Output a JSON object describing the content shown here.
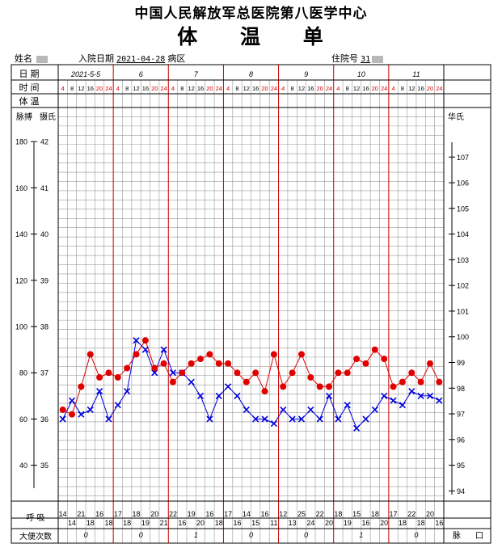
{
  "header": {
    "hospital": "中国人民解放军总医院第八医学中心",
    "title": "体 温 单"
  },
  "patient": {
    "name_label": "姓名",
    "admit_label": "入院日期",
    "admit_date": "2021-04-28",
    "ward_label": "病区",
    "inpatient_label": "住院号",
    "inpatient_no": "31"
  },
  "labels": {
    "date": "日 期",
    "time": "时 间",
    "temp": "体 温",
    "pulse": "脉搏",
    "celsius": "摄氏",
    "fahrenheit": "华氏",
    "resp": "呼 吸",
    "stool": "大便次数",
    "pulse_foot": "脉",
    "mouth_foot": "口"
  },
  "colors": {
    "temp": "#e00000",
    "pulse": "#0000dd",
    "line": "#000000",
    "day_line": "#cc0000",
    "grid": "#999999"
  },
  "chart_data": {
    "type": "line",
    "days": [
      "2021-5-5",
      "6",
      "7",
      "8",
      "9",
      "10",
      "11"
    ],
    "hours": [
      "4",
      "8",
      "12",
      "16",
      "20",
      "24"
    ],
    "pulse_scale": [
      180,
      160,
      140,
      120,
      100,
      80,
      60,
      40
    ],
    "celsius_scale": [
      42,
      41,
      40,
      39,
      38,
      37,
      36,
      35
    ],
    "fahrenheit_scale": [
      107,
      106,
      105,
      104,
      103,
      102,
      101,
      100,
      99,
      98,
      97,
      96,
      95,
      94
    ],
    "temperature_c": [
      [
        36.2,
        36.1,
        36.7,
        37.4,
        36.9,
        37.0
      ],
      [
        36.9,
        37.1,
        37.4,
        37.7,
        37.1,
        37.2
      ],
      [
        36.8,
        37.0,
        37.2,
        37.3,
        37.4,
        37.2
      ],
      [
        37.2,
        37.0,
        36.8,
        37.0,
        36.6,
        37.4
      ],
      [
        36.7,
        37.0,
        37.4,
        36.9,
        36.7,
        36.7
      ],
      [
        37.0,
        37.0,
        37.3,
        37.2,
        37.5,
        37.3
      ],
      [
        36.7,
        36.8,
        37.0,
        36.8,
        37.2,
        36.8
      ]
    ],
    "pulse": [
      [
        60,
        68,
        62,
        64,
        72,
        60
      ],
      [
        66,
        72,
        94,
        90,
        80,
        90
      ],
      [
        80,
        80,
        76,
        70,
        60,
        70
      ],
      [
        74,
        70,
        64,
        60,
        60,
        58
      ],
      [
        64,
        60,
        60,
        64,
        60,
        70
      ],
      [
        60,
        66,
        56,
        60,
        64,
        70
      ],
      [
        68,
        66,
        72,
        70,
        70,
        68
      ]
    ],
    "respiration": [
      [
        "14",
        "14",
        "21",
        "18",
        "16",
        "18"
      ],
      [
        "17",
        "18",
        "18",
        "19",
        "20",
        "21"
      ],
      [
        "22",
        "16",
        "19",
        "20",
        "16",
        "18"
      ],
      [
        "17",
        "16",
        "14",
        "15",
        "16",
        "11"
      ],
      [
        "12",
        "13",
        "25",
        "24",
        "22",
        "20"
      ],
      [
        "18",
        "19",
        "15",
        "16",
        "18",
        "20"
      ],
      [
        "17",
        "18",
        "22",
        "18",
        "20",
        "16"
      ]
    ],
    "stool": [
      "0",
      "0",
      "1",
      "0",
      "0",
      "1",
      "0"
    ]
  }
}
